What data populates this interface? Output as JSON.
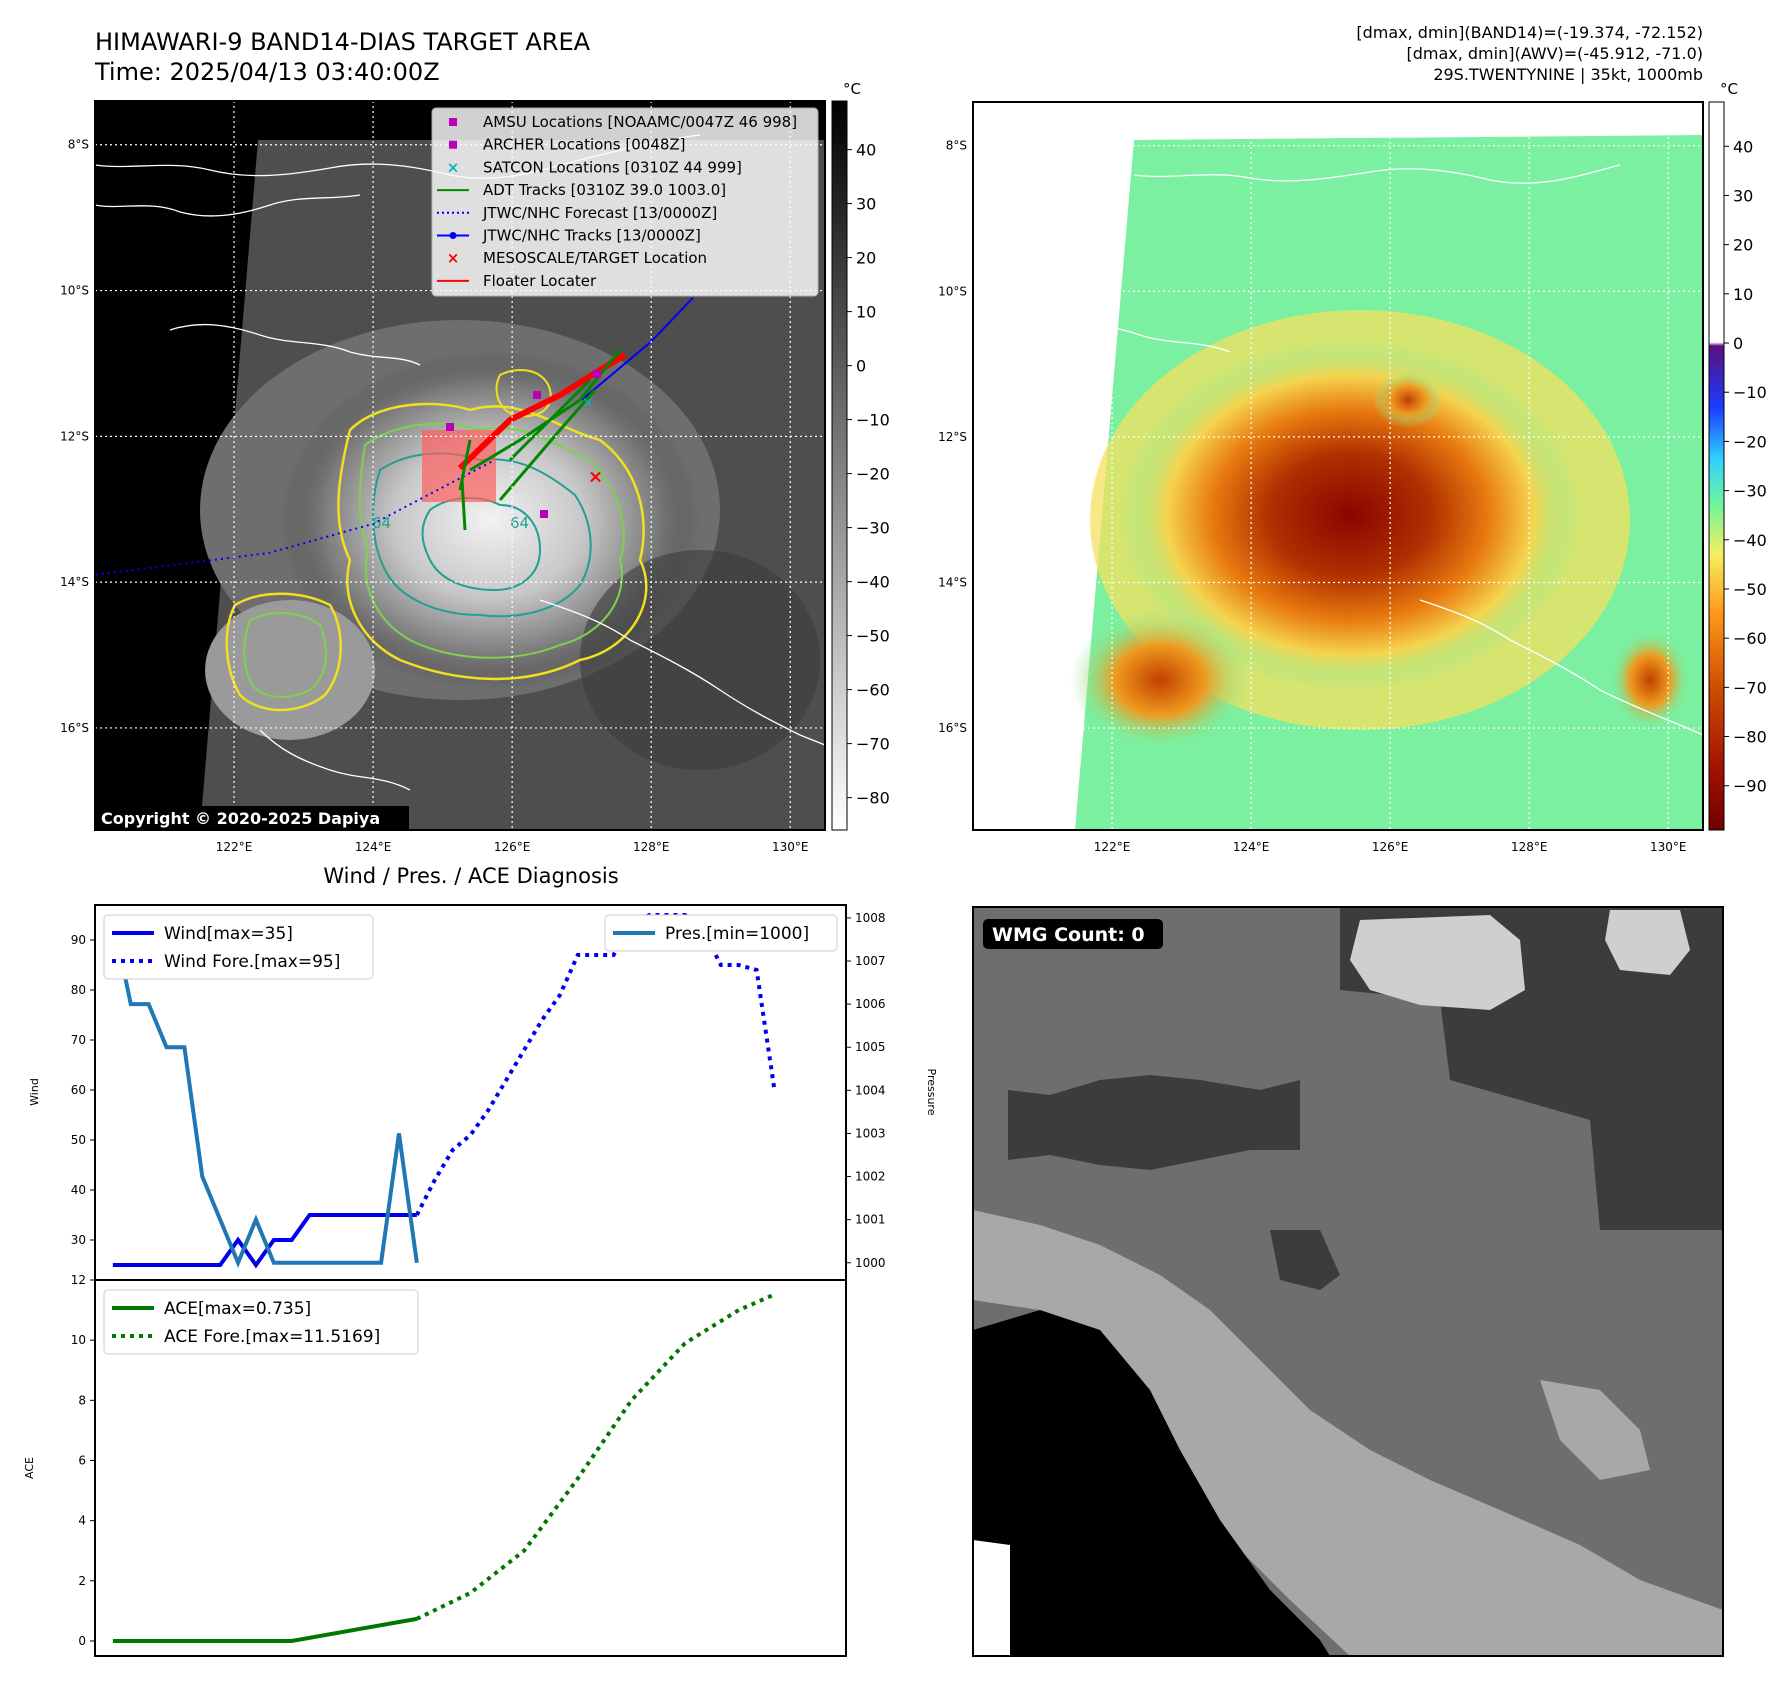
{
  "header": {
    "title": "HIMAWARI-9 BAND14-DIAS TARGET AREA",
    "time": "Time: 2025/04/13 03:40:00Z",
    "stats_band14": "[dmax, dmin](BAND14)=(-19.374, -72.152)",
    "stats_awv": "[dmax, dmin](AWV)=(-45.912, -71.0)",
    "storm": "29S.TWENTYNINE | 35kt, 1000mb"
  },
  "copyright": "Copyright © 2020-2025 Dapiya",
  "diag_title": "Wind / Pres. / ACE Diagnosis",
  "wmg_count": "WMG Count: 0",
  "colorbar_unit": "°C",
  "colors": {
    "wind": "#0000ee",
    "pressure": "#1f77b4",
    "ace": "#007700",
    "track_obs": "#0000ff",
    "floater": "#ff0000",
    "amsu": "#bb00bb",
    "satcon": "#00bbbb",
    "adt": "#008800"
  },
  "map": {
    "lon_labels": [
      "122°E",
      "124°E",
      "126°E",
      "128°E",
      "130°E"
    ],
    "lat_labels": [
      "8°S",
      "10°S",
      "12°S",
      "14°S",
      "16°S"
    ],
    "lon_values": [
      122,
      124,
      126,
      128,
      130
    ],
    "lat_values": [
      -8,
      -10,
      -12,
      -14,
      -16
    ],
    "extent": {
      "lon_min": 120.0,
      "lon_max": 130.5,
      "lat_min": -17.4,
      "lat_max": -7.4
    },
    "contour_label": "64",
    "legend": [
      {
        "label": "AMSU Locations [NOAAMC/0047Z 46 998]",
        "marker": "square",
        "color": "#bb00bb"
      },
      {
        "label": "ARCHER Locations [0048Z]",
        "marker": "square",
        "color": "#bb00bb"
      },
      {
        "label": "SATCON Locations [0310Z 44 999]",
        "marker": "x",
        "color": "#00bbbb"
      },
      {
        "label": "ADT Tracks [0310Z 39.0 1003.0]",
        "marker": "line",
        "color": "#008800"
      },
      {
        "label": "JTWC/NHC Forecast [13/0000Z]",
        "marker": "dotted",
        "color": "#0000ff"
      },
      {
        "label": "JTWC/NHC Tracks [13/0000Z]",
        "marker": "line-dot",
        "color": "#0000ff"
      },
      {
        "label": "MESOSCALE/TARGET Location",
        "marker": "x",
        "color": "#ff0000"
      },
      {
        "label": "Floater Locater",
        "marker": "line",
        "color": "#ff0000"
      }
    ],
    "colorbar_gray_ticks": [
      40,
      30,
      20,
      10,
      0,
      -10,
      -20,
      -30,
      -40,
      -50,
      -60,
      -70,
      -80
    ],
    "colorbar_awv_ticks": [
      40,
      30,
      20,
      10,
      0,
      -10,
      -20,
      -30,
      -40,
      -50,
      -60,
      -70,
      -80,
      -90
    ],
    "jtwc_track": [
      [
        127.0,
        -11.5
      ],
      [
        128.0,
        -10.7
      ],
      [
        128.6,
        -10.1
      ]
    ],
    "jtwc_forecast": [
      [
        125.7,
        -12.35
      ],
      [
        124.0,
        -13.2
      ],
      [
        122.5,
        -13.6
      ],
      [
        120.0,
        -13.9
      ]
    ],
    "mesoscale_target": [
      127.2,
      -12.55
    ]
  },
  "chart_data": [
    {
      "type": "line",
      "title": "Wind / Pres. / ACE Diagnosis",
      "ylabel": "Wind",
      "ylim": [
        22,
        97
      ],
      "y2label": "Pressure",
      "y2lim": [
        999.6,
        1008.3
      ],
      "yticks": [
        30,
        40,
        50,
        60,
        70,
        80,
        90
      ],
      "y2ticks": [
        1000,
        1001,
        1002,
        1003,
        1004,
        1005,
        1006,
        1007,
        1008
      ],
      "x": [
        0,
        1,
        2,
        3,
        4,
        5,
        6,
        7,
        8,
        9,
        10,
        11,
        12,
        13,
        14,
        15,
        16,
        17,
        18,
        19,
        20,
        21,
        22,
        23,
        24,
        25,
        26,
        27,
        28,
        29,
        30,
        31,
        32,
        33,
        34,
        35,
        36,
        37,
        38,
        39,
        40
      ],
      "xlim": [
        -1,
        41
      ],
      "series": [
        {
          "name": "Wind[max=35]",
          "axis": "left",
          "style": "solid",
          "color": "#0000ee",
          "x": [
            0,
            1,
            2,
            3,
            4,
            5,
            6,
            7,
            8,
            9,
            10,
            11,
            12,
            13,
            14,
            15,
            16,
            17
          ],
          "values": [
            25,
            25,
            25,
            25,
            25,
            25,
            25,
            30,
            25,
            30,
            30,
            35,
            35,
            35,
            35,
            35,
            35,
            35
          ]
        },
        {
          "name": "Wind Fore.[max=95]",
          "axis": "left",
          "style": "dotted",
          "color": "#0000ee",
          "x": [
            17,
            18,
            19,
            20,
            21,
            22,
            23,
            24,
            25,
            26,
            27,
            28,
            29,
            30,
            31,
            32,
            33,
            34,
            35,
            36,
            37
          ],
          "values": [
            35,
            42,
            48,
            51,
            56,
            62,
            68,
            74,
            79,
            87,
            87,
            87,
            93,
            95,
            95,
            95,
            92,
            85,
            85,
            84,
            60
          ]
        },
        {
          "name": "Pres.[min=1000]",
          "axis": "right",
          "style": "solid",
          "color": "#1f77b4",
          "x": [
            0,
            1,
            2,
            3,
            4,
            5,
            6,
            7,
            8,
            9,
            10,
            11,
            12,
            13,
            14,
            15,
            16,
            17
          ],
          "values": [
            1008,
            1006,
            1006,
            1005,
            1005,
            1002,
            1001,
            1000,
            1001,
            1000,
            1000,
            1000,
            1000,
            1000,
            1000,
            1000,
            1003,
            1000
          ]
        }
      ]
    },
    {
      "type": "line",
      "ylabel": "ACE",
      "ylim": [
        -0.5,
        12
      ],
      "yticks": [
        0,
        2,
        4,
        6,
        8,
        10,
        12
      ],
      "xlim": [
        -1,
        41
      ],
      "series": [
        {
          "name": "ACE[max=0.735]",
          "style": "solid",
          "color": "#007700",
          "x": [
            0,
            5,
            10,
            17
          ],
          "values": [
            0,
            0,
            0,
            0.735
          ]
        },
        {
          "name": "ACE Fore.[max=11.5169]",
          "style": "dotted",
          "color": "#007700",
          "x": [
            17,
            20,
            23,
            26,
            29,
            32,
            35,
            37
          ],
          "values": [
            0.735,
            1.6,
            3.0,
            5.4,
            8.0,
            9.9,
            11.0,
            11.5169
          ]
        }
      ]
    }
  ]
}
